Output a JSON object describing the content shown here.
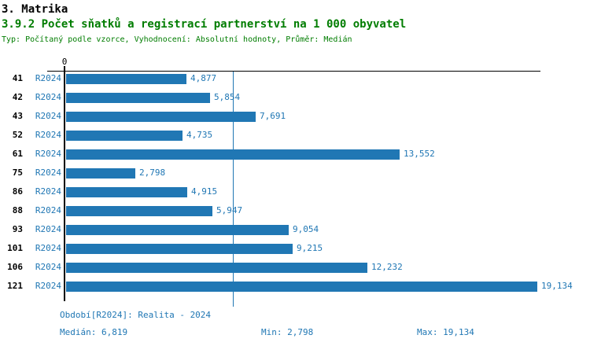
{
  "header": {
    "title": "3. Matrika",
    "subtitle": "3.9.2 Počet sňatků a registrací partnerství na 1 000 obyvatel",
    "meta": "Typ: Počítaný podle vzorce, Vyhodnocení: Absolutní hodnoty, Průměr: Medián"
  },
  "chart_data": {
    "type": "bar",
    "orientation": "horizontal",
    "title": "3.9.2 Počet sňatků a registrací partnerství na 1 000 obyvatel",
    "series_label": "R2024",
    "categories": [
      "41",
      "42",
      "43",
      "52",
      "61",
      "75",
      "86",
      "88",
      "93",
      "101",
      "106",
      "121"
    ],
    "values": [
      4.877,
      5.854,
      7.691,
      4.735,
      13.552,
      2.798,
      4.915,
      5.947,
      9.054,
      9.215,
      12.232,
      19.134
    ],
    "value_labels": [
      "4,877",
      "5,854",
      "7,691",
      "4,735",
      "13,552",
      "2,798",
      "4,915",
      "5,947",
      "9,054",
      "9,215",
      "12,232",
      "19,134"
    ],
    "axis_origin_label": "0",
    "xlim": [
      0,
      19.134
    ],
    "median_value": 6.819,
    "grid": false,
    "legend": "none",
    "bar_color": "#2077b4",
    "median_line_color": "#2077b4"
  },
  "footer": {
    "period": "Období[R2024]: Realita - 2024",
    "median": "Medián: 6,819",
    "min": "Min: 2,798",
    "max": "Max: 19,134"
  },
  "colors": {
    "title_black": "#000000",
    "accent_green": "#007d00",
    "accent_blue": "#2077b4"
  }
}
